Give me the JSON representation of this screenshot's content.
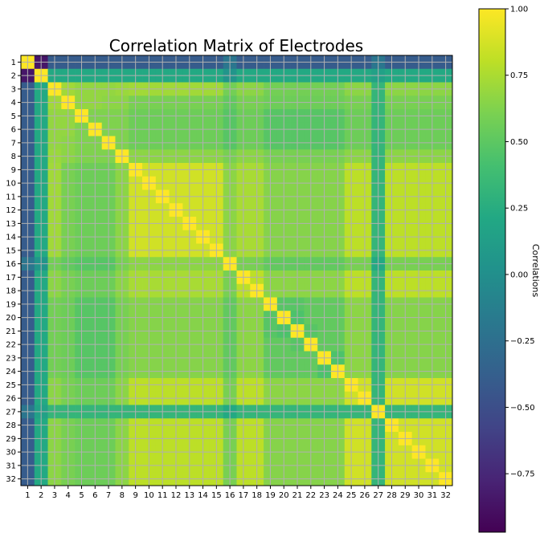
{
  "chart_data": {
    "type": "heatmap",
    "title": "Correlation Matrix of Electrodes",
    "xlabel": "",
    "ylabel": "",
    "x_tick_labels": [
      "1",
      "2",
      "3",
      "4",
      "5",
      "6",
      "7",
      "8",
      "9",
      "10",
      "11",
      "12",
      "13",
      "14",
      "15",
      "16",
      "17",
      "18",
      "19",
      "20",
      "21",
      "22",
      "23",
      "24",
      "25",
      "26",
      "27",
      "28",
      "29",
      "30",
      "31",
      "32"
    ],
    "y_tick_labels": [
      "1",
      "2",
      "3",
      "4",
      "5",
      "6",
      "7",
      "8",
      "9",
      "10",
      "11",
      "12",
      "13",
      "14",
      "15",
      "16",
      "17",
      "18",
      "19",
      "20",
      "21",
      "22",
      "23",
      "24",
      "25",
      "26",
      "27",
      "28",
      "29",
      "30",
      "31",
      "32"
    ],
    "grid": true,
    "colormap": "viridis",
    "colorbar": {
      "label": "Correlations",
      "vmin": -0.97,
      "vmax": 1.0,
      "ticks": [
        1.0,
        0.75,
        0.5,
        0.25,
        0.0,
        -0.25,
        -0.5,
        -0.75
      ],
      "tick_labels": [
        "1.00",
        "0.75",
        "0.50",
        "0.25",
        "0.00",
        "−0.25",
        "−0.50",
        "−0.75"
      ]
    },
    "values": [
      [
        1.0,
        -0.85,
        -0.4,
        -0.4,
        -0.4,
        -0.4,
        -0.4,
        -0.4,
        -0.4,
        -0.4,
        -0.4,
        -0.4,
        -0.4,
        -0.4,
        -0.4,
        -0.2,
        -0.4,
        -0.4,
        -0.4,
        -0.4,
        -0.4,
        -0.4,
        -0.4,
        -0.4,
        -0.4,
        -0.4,
        -0.2,
        -0.4,
        -0.4,
        -0.4,
        -0.4,
        -0.4
      ],
      [
        -0.85,
        1.0,
        0.22,
        0.22,
        0.22,
        0.22,
        0.22,
        0.22,
        0.22,
        0.22,
        0.22,
        0.22,
        0.22,
        0.22,
        0.22,
        0.05,
        0.22,
        0.22,
        0.22,
        0.22,
        0.22,
        0.22,
        0.22,
        0.22,
        0.22,
        0.22,
        0.15,
        0.22,
        0.22,
        0.22,
        0.22,
        0.22
      ],
      [
        -0.4,
        0.22,
        1.0,
        0.72,
        0.68,
        0.68,
        0.68,
        0.7,
        0.72,
        0.72,
        0.72,
        0.72,
        0.72,
        0.72,
        0.72,
        0.58,
        0.66,
        0.66,
        0.58,
        0.58,
        0.58,
        0.58,
        0.58,
        0.58,
        0.66,
        0.66,
        0.32,
        0.66,
        0.66,
        0.66,
        0.66,
        0.66
      ],
      [
        -0.4,
        0.22,
        0.72,
        1.0,
        0.68,
        0.68,
        0.66,
        0.66,
        0.6,
        0.6,
        0.6,
        0.6,
        0.6,
        0.6,
        0.6,
        0.52,
        0.6,
        0.6,
        0.56,
        0.56,
        0.56,
        0.56,
        0.56,
        0.56,
        0.6,
        0.6,
        0.32,
        0.6,
        0.6,
        0.6,
        0.6,
        0.6
      ],
      [
        -0.4,
        0.22,
        0.68,
        0.68,
        1.0,
        0.62,
        0.62,
        0.62,
        0.56,
        0.56,
        0.56,
        0.56,
        0.56,
        0.56,
        0.56,
        0.48,
        0.56,
        0.56,
        0.48,
        0.48,
        0.48,
        0.48,
        0.48,
        0.48,
        0.56,
        0.56,
        0.32,
        0.56,
        0.56,
        0.56,
        0.56,
        0.56
      ],
      [
        -0.4,
        0.22,
        0.68,
        0.68,
        0.62,
        1.0,
        0.62,
        0.62,
        0.56,
        0.56,
        0.56,
        0.56,
        0.56,
        0.56,
        0.56,
        0.48,
        0.56,
        0.56,
        0.48,
        0.48,
        0.48,
        0.48,
        0.48,
        0.48,
        0.56,
        0.56,
        0.32,
        0.56,
        0.56,
        0.56,
        0.56,
        0.56
      ],
      [
        -0.4,
        0.22,
        0.68,
        0.66,
        0.62,
        0.62,
        1.0,
        0.62,
        0.56,
        0.56,
        0.56,
        0.56,
        0.56,
        0.56,
        0.56,
        0.48,
        0.56,
        0.56,
        0.48,
        0.48,
        0.48,
        0.48,
        0.48,
        0.48,
        0.56,
        0.56,
        0.32,
        0.56,
        0.56,
        0.56,
        0.56,
        0.56
      ],
      [
        -0.4,
        0.22,
        0.7,
        0.66,
        0.62,
        0.62,
        0.62,
        1.0,
        0.66,
        0.66,
        0.66,
        0.66,
        0.66,
        0.66,
        0.66,
        0.6,
        0.66,
        0.66,
        0.6,
        0.6,
        0.6,
        0.6,
        0.6,
        0.6,
        0.66,
        0.66,
        0.32,
        0.66,
        0.66,
        0.66,
        0.66,
        0.66
      ],
      [
        -0.4,
        0.22,
        0.72,
        0.6,
        0.56,
        0.56,
        0.56,
        0.66,
        1.0,
        0.86,
        0.86,
        0.86,
        0.86,
        0.86,
        0.86,
        0.66,
        0.74,
        0.74,
        0.64,
        0.64,
        0.64,
        0.64,
        0.64,
        0.64,
        0.8,
        0.8,
        0.32,
        0.8,
        0.8,
        0.8,
        0.8,
        0.8
      ],
      [
        -0.4,
        0.22,
        0.72,
        0.6,
        0.56,
        0.56,
        0.56,
        0.66,
        0.86,
        1.0,
        0.86,
        0.86,
        0.86,
        0.86,
        0.86,
        0.66,
        0.74,
        0.74,
        0.64,
        0.64,
        0.64,
        0.64,
        0.64,
        0.64,
        0.8,
        0.8,
        0.32,
        0.8,
        0.8,
        0.8,
        0.8,
        0.8
      ],
      [
        -0.4,
        0.22,
        0.72,
        0.6,
        0.56,
        0.56,
        0.56,
        0.66,
        0.86,
        0.86,
        1.0,
        0.86,
        0.86,
        0.86,
        0.86,
        0.66,
        0.74,
        0.74,
        0.64,
        0.64,
        0.64,
        0.64,
        0.64,
        0.64,
        0.8,
        0.8,
        0.32,
        0.8,
        0.8,
        0.8,
        0.8,
        0.8
      ],
      [
        -0.4,
        0.22,
        0.72,
        0.6,
        0.56,
        0.56,
        0.56,
        0.66,
        0.86,
        0.86,
        0.86,
        1.0,
        0.86,
        0.86,
        0.86,
        0.66,
        0.74,
        0.74,
        0.64,
        0.64,
        0.64,
        0.64,
        0.64,
        0.64,
        0.8,
        0.8,
        0.32,
        0.8,
        0.8,
        0.8,
        0.8,
        0.8
      ],
      [
        -0.4,
        0.22,
        0.72,
        0.6,
        0.56,
        0.56,
        0.56,
        0.66,
        0.86,
        0.86,
        0.86,
        0.86,
        1.0,
        0.86,
        0.86,
        0.66,
        0.74,
        0.74,
        0.64,
        0.64,
        0.64,
        0.64,
        0.64,
        0.64,
        0.8,
        0.8,
        0.32,
        0.8,
        0.8,
        0.8,
        0.8,
        0.8
      ],
      [
        -0.4,
        0.22,
        0.72,
        0.6,
        0.56,
        0.56,
        0.56,
        0.66,
        0.86,
        0.86,
        0.86,
        0.86,
        0.86,
        1.0,
        0.86,
        0.66,
        0.74,
        0.74,
        0.64,
        0.64,
        0.64,
        0.64,
        0.64,
        0.64,
        0.8,
        0.8,
        0.32,
        0.8,
        0.8,
        0.8,
        0.8,
        0.8
      ],
      [
        -0.4,
        0.22,
        0.72,
        0.6,
        0.56,
        0.56,
        0.56,
        0.66,
        0.86,
        0.86,
        0.86,
        0.86,
        0.86,
        0.86,
        1.0,
        0.66,
        0.74,
        0.74,
        0.64,
        0.64,
        0.64,
        0.64,
        0.64,
        0.64,
        0.8,
        0.8,
        0.32,
        0.8,
        0.8,
        0.8,
        0.8,
        0.8
      ],
      [
        -0.2,
        0.05,
        0.58,
        0.52,
        0.48,
        0.48,
        0.48,
        0.6,
        0.66,
        0.66,
        0.66,
        0.66,
        0.66,
        0.66,
        0.66,
        1.0,
        0.6,
        0.6,
        0.52,
        0.52,
        0.52,
        0.52,
        0.52,
        0.52,
        0.6,
        0.6,
        0.22,
        0.6,
        0.6,
        0.6,
        0.6,
        0.6
      ],
      [
        -0.4,
        0.22,
        0.66,
        0.6,
        0.56,
        0.56,
        0.56,
        0.66,
        0.74,
        0.74,
        0.74,
        0.74,
        0.74,
        0.74,
        0.74,
        0.6,
        1.0,
        0.8,
        0.66,
        0.66,
        0.66,
        0.66,
        0.66,
        0.66,
        0.8,
        0.8,
        0.32,
        0.8,
        0.8,
        0.8,
        0.8,
        0.8
      ],
      [
        -0.4,
        0.22,
        0.66,
        0.6,
        0.56,
        0.56,
        0.56,
        0.66,
        0.74,
        0.74,
        0.74,
        0.74,
        0.74,
        0.74,
        0.74,
        0.6,
        0.8,
        1.0,
        0.66,
        0.66,
        0.66,
        0.66,
        0.66,
        0.66,
        0.8,
        0.8,
        0.32,
        0.8,
        0.8,
        0.8,
        0.8,
        0.8
      ],
      [
        -0.4,
        0.22,
        0.58,
        0.56,
        0.48,
        0.48,
        0.48,
        0.6,
        0.64,
        0.64,
        0.64,
        0.64,
        0.64,
        0.64,
        0.64,
        0.52,
        0.66,
        0.66,
        1.0,
        0.48,
        0.48,
        0.52,
        0.52,
        0.52,
        0.66,
        0.66,
        0.32,
        0.64,
        0.64,
        0.64,
        0.64,
        0.64
      ],
      [
        -0.4,
        0.22,
        0.58,
        0.56,
        0.48,
        0.48,
        0.48,
        0.6,
        0.64,
        0.64,
        0.64,
        0.64,
        0.64,
        0.64,
        0.64,
        0.52,
        0.66,
        0.66,
        0.48,
        1.0,
        0.44,
        0.52,
        0.52,
        0.52,
        0.66,
        0.66,
        0.32,
        0.64,
        0.64,
        0.64,
        0.64,
        0.64
      ],
      [
        -0.4,
        0.22,
        0.58,
        0.56,
        0.48,
        0.48,
        0.48,
        0.6,
        0.64,
        0.64,
        0.64,
        0.64,
        0.64,
        0.64,
        0.64,
        0.52,
        0.66,
        0.66,
        0.48,
        0.44,
        1.0,
        0.48,
        0.52,
        0.52,
        0.66,
        0.66,
        0.32,
        0.64,
        0.64,
        0.64,
        0.64,
        0.64
      ],
      [
        -0.4,
        0.22,
        0.58,
        0.56,
        0.48,
        0.48,
        0.48,
        0.6,
        0.64,
        0.64,
        0.64,
        0.64,
        0.64,
        0.64,
        0.64,
        0.52,
        0.66,
        0.66,
        0.52,
        0.52,
        0.48,
        1.0,
        0.52,
        0.52,
        0.66,
        0.66,
        0.32,
        0.64,
        0.64,
        0.64,
        0.64,
        0.64
      ],
      [
        -0.4,
        0.22,
        0.58,
        0.56,
        0.48,
        0.48,
        0.48,
        0.6,
        0.64,
        0.64,
        0.64,
        0.64,
        0.64,
        0.64,
        0.64,
        0.52,
        0.66,
        0.66,
        0.52,
        0.52,
        0.52,
        0.52,
        1.0,
        0.44,
        0.66,
        0.66,
        0.32,
        0.64,
        0.64,
        0.64,
        0.64,
        0.64
      ],
      [
        -0.4,
        0.22,
        0.58,
        0.56,
        0.48,
        0.48,
        0.48,
        0.6,
        0.64,
        0.64,
        0.64,
        0.64,
        0.64,
        0.64,
        0.64,
        0.52,
        0.66,
        0.66,
        0.52,
        0.52,
        0.52,
        0.52,
        0.44,
        1.0,
        0.66,
        0.66,
        0.32,
        0.64,
        0.64,
        0.64,
        0.64,
        0.64
      ],
      [
        -0.4,
        0.22,
        0.66,
        0.6,
        0.56,
        0.56,
        0.56,
        0.66,
        0.8,
        0.8,
        0.8,
        0.8,
        0.8,
        0.8,
        0.8,
        0.6,
        0.8,
        0.8,
        0.66,
        0.66,
        0.66,
        0.66,
        0.66,
        0.66,
        1.0,
        0.86,
        0.32,
        0.86,
        0.86,
        0.86,
        0.86,
        0.86
      ],
      [
        -0.4,
        0.22,
        0.66,
        0.6,
        0.56,
        0.56,
        0.56,
        0.66,
        0.8,
        0.8,
        0.8,
        0.8,
        0.8,
        0.8,
        0.8,
        0.6,
        0.8,
        0.8,
        0.66,
        0.66,
        0.66,
        0.66,
        0.66,
        0.66,
        0.86,
        1.0,
        0.32,
        0.86,
        0.86,
        0.86,
        0.86,
        0.86
      ],
      [
        -0.2,
        0.15,
        0.32,
        0.32,
        0.32,
        0.32,
        0.32,
        0.32,
        0.32,
        0.32,
        0.32,
        0.32,
        0.32,
        0.32,
        0.32,
        0.22,
        0.32,
        0.32,
        0.32,
        0.32,
        0.32,
        0.32,
        0.32,
        0.32,
        0.32,
        0.32,
        1.0,
        0.32,
        0.32,
        0.32,
        0.32,
        0.32
      ],
      [
        -0.4,
        0.22,
        0.66,
        0.6,
        0.56,
        0.56,
        0.56,
        0.66,
        0.8,
        0.8,
        0.8,
        0.8,
        0.8,
        0.8,
        0.8,
        0.6,
        0.8,
        0.8,
        0.64,
        0.64,
        0.64,
        0.64,
        0.64,
        0.64,
        0.86,
        0.86,
        0.32,
        1.0,
        0.86,
        0.86,
        0.86,
        0.86
      ],
      [
        -0.4,
        0.22,
        0.66,
        0.6,
        0.56,
        0.56,
        0.56,
        0.66,
        0.8,
        0.8,
        0.8,
        0.8,
        0.8,
        0.8,
        0.8,
        0.6,
        0.8,
        0.8,
        0.64,
        0.64,
        0.64,
        0.64,
        0.64,
        0.64,
        0.86,
        0.86,
        0.32,
        0.86,
        1.0,
        0.86,
        0.86,
        0.86
      ],
      [
        -0.4,
        0.22,
        0.66,
        0.6,
        0.56,
        0.56,
        0.56,
        0.66,
        0.8,
        0.8,
        0.8,
        0.8,
        0.8,
        0.8,
        0.8,
        0.6,
        0.8,
        0.8,
        0.64,
        0.64,
        0.64,
        0.64,
        0.64,
        0.64,
        0.86,
        0.86,
        0.32,
        0.86,
        0.86,
        1.0,
        0.86,
        0.86
      ],
      [
        -0.4,
        0.22,
        0.66,
        0.6,
        0.56,
        0.56,
        0.56,
        0.66,
        0.8,
        0.8,
        0.8,
        0.8,
        0.8,
        0.8,
        0.8,
        0.6,
        0.8,
        0.8,
        0.64,
        0.64,
        0.64,
        0.64,
        0.64,
        0.64,
        0.86,
        0.86,
        0.32,
        0.86,
        0.86,
        0.86,
        1.0,
        0.86
      ],
      [
        -0.4,
        0.22,
        0.66,
        0.6,
        0.56,
        0.56,
        0.56,
        0.66,
        0.8,
        0.8,
        0.8,
        0.8,
        0.8,
        0.8,
        0.8,
        0.6,
        0.8,
        0.8,
        0.64,
        0.64,
        0.64,
        0.64,
        0.64,
        0.64,
        0.86,
        0.86,
        0.32,
        0.86,
        0.86,
        0.86,
        0.86,
        1.0
      ]
    ]
  }
}
